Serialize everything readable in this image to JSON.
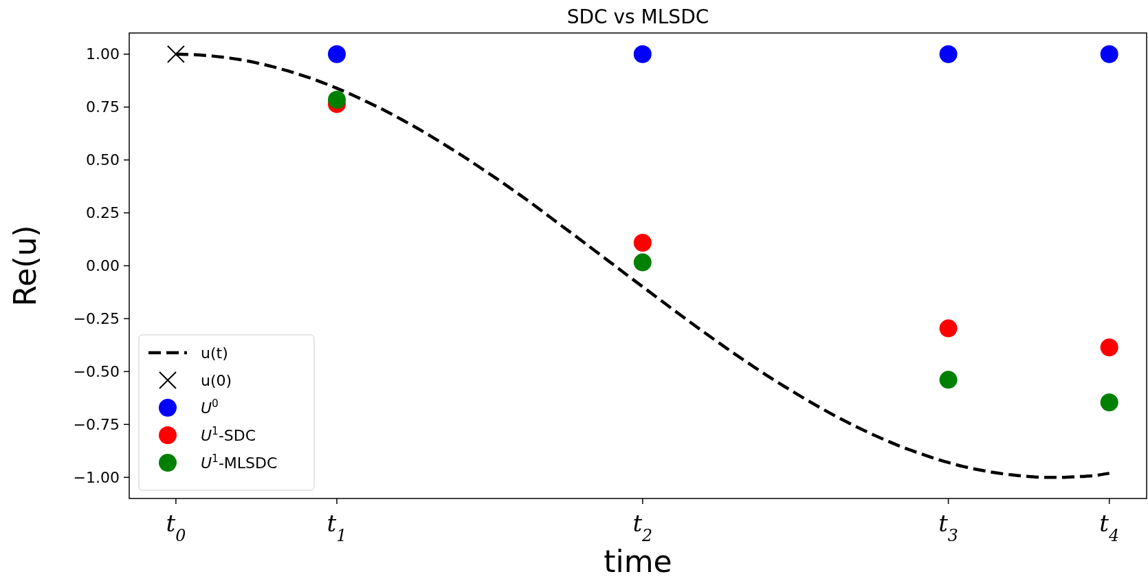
{
  "chart_data": {
    "type": "scatter",
    "title": "SDC vs MLSDC",
    "xlabel": "time",
    "ylabel": "Re(u)",
    "categories": [
      "t$_{0}$",
      null,
      null,
      null,
      null,
      null,
      null,
      null,
      null,
      null,
      "t$_{1}$",
      null,
      null,
      null,
      null,
      null,
      null,
      null,
      null,
      null,
      null,
      null,
      null,
      null,
      null,
      null,
      null,
      null,
      null,
      "t$_{2}$",
      null,
      null,
      null,
      null,
      null,
      null,
      null,
      null,
      null,
      null,
      null,
      null,
      null,
      null,
      null,
      null,
      null,
      null,
      "t$_{3}$",
      null,
      null,
      null,
      null,
      null,
      null,
      null,
      null,
      null,
      "t$_{4}$"
    ],
    "ylim": [
      -1.1,
      1.1
    ],
    "yticks": [
      {
        "value": -1,
        "label": "−1.00"
      },
      {
        "value": -0.75,
        "label": "−0.75"
      },
      {
        "value": -0.5,
        "label": "−0.50"
      },
      {
        "value": -0.25,
        "label": "−0.25"
      },
      {
        "value": 0,
        "label": "0.00"
      },
      {
        "value": 0.25,
        "label": "0.25"
      },
      {
        "value": 0.5,
        "label": "0.50"
      },
      {
        "value": 0.75,
        "label": "0.75"
      },
      {
        "value": 1,
        "label": "1.00"
      }
    ],
    "legend": "bottom left",
    "series": [
      {
        "name": "u(t)",
        "type": "line",
        "color": "#000000",
        "marker": "none",
        "line_style": "dashed",
        "values": [
          1,
          0.998,
          0.993,
          0.985,
          0.974,
          0.959,
          0.941,
          0.92,
          0.896,
          0.869,
          0.839,
          0.806,
          0.77,
          0.733,
          0.692,
          0.65,
          0.605,
          0.558,
          0.51,
          0.459,
          0.408,
          0.355,
          0.301,
          0.244,
          0.187,
          0.131,
          0.073,
          0.016,
          -0.042,
          -0.099,
          -0.156,
          -0.213,
          -0.269,
          -0.324,
          -0.378,
          -0.431,
          -0.482,
          -0.532,
          -0.579,
          -0.625,
          -0.669,
          -0.711,
          -0.75,
          -0.787,
          -0.821,
          -0.853,
          -0.881,
          -0.907,
          -0.93,
          -0.95,
          -0.966,
          -0.979,
          -0.989,
          -0.996,
          -1.0,
          -1.0,
          -0.997,
          -0.992,
          -0.981
        ]
      },
      {
        "name": "u(0)",
        "color": "#000000",
        "marker": "cross",
        "values": [
          1,
          null,
          null,
          null,
          null,
          null,
          null,
          null,
          null,
          null,
          null,
          null,
          null,
          null,
          null,
          null,
          null,
          null,
          null,
          null,
          null,
          null,
          null,
          null,
          null,
          null,
          null,
          null,
          null,
          null,
          null,
          null,
          null,
          null,
          null,
          null,
          null,
          null,
          null,
          null,
          null,
          null,
          null,
          null,
          null,
          null,
          null,
          null,
          null,
          null,
          null,
          null,
          null,
          null,
          null,
          null,
          null,
          null,
          null
        ]
      },
      {
        "name": "U$^{0}$",
        "color": "#0000ff",
        "marker": "circle",
        "values": [
          null,
          null,
          null,
          null,
          null,
          null,
          null,
          null,
          null,
          null,
          1,
          null,
          null,
          null,
          null,
          null,
          null,
          null,
          null,
          null,
          null,
          null,
          null,
          null,
          null,
          null,
          null,
          null,
          null,
          1,
          null,
          null,
          null,
          null,
          null,
          null,
          null,
          null,
          null,
          null,
          null,
          null,
          null,
          null,
          null,
          null,
          null,
          null,
          1,
          null,
          null,
          null,
          null,
          null,
          null,
          null,
          null,
          null,
          1
        ]
      },
      {
        "name": "U$^{1}$-SDC",
        "color": "#ff0000",
        "marker": "circle",
        "values": [
          null,
          null,
          null,
          null,
          null,
          null,
          null,
          null,
          null,
          null,
          0.764,
          null,
          null,
          null,
          null,
          null,
          null,
          null,
          null,
          null,
          null,
          null,
          null,
          null,
          null,
          null,
          null,
          null,
          null,
          0.109,
          null,
          null,
          null,
          null,
          null,
          null,
          null,
          null,
          null,
          null,
          null,
          null,
          null,
          null,
          null,
          null,
          null,
          null,
          -0.296,
          null,
          null,
          null,
          null,
          null,
          null,
          null,
          null,
          null,
          -0.386
        ]
      },
      {
        "name": "U$^{1}$-MLSDC",
        "color": "#008000",
        "marker": "circle",
        "values": [
          null,
          null,
          null,
          null,
          null,
          null,
          null,
          null,
          null,
          null,
          0.785,
          null,
          null,
          null,
          null,
          null,
          null,
          null,
          null,
          null,
          null,
          null,
          null,
          null,
          null,
          null,
          null,
          null,
          null,
          0.016,
          null,
          null,
          null,
          null,
          null,
          null,
          null,
          null,
          null,
          null,
          null,
          null,
          null,
          null,
          null,
          null,
          null,
          null,
          -0.539,
          null,
          null,
          null,
          null,
          null,
          null,
          null,
          null,
          null,
          -0.646
        ]
      }
    ]
  }
}
